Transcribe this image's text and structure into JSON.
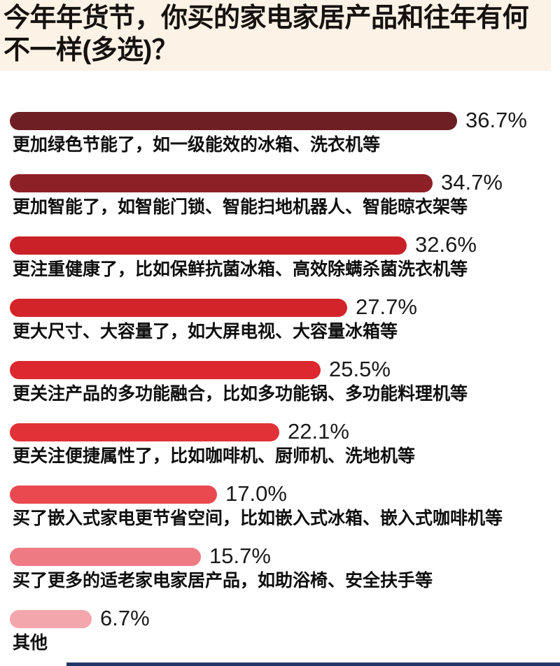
{
  "title": "今年年货节，你买的家电家居产品和往年有何不一样(多选)？",
  "colors": {
    "title_bg": "#fdf2e6",
    "page_bg": "#ffffff",
    "text": "#0f0f0f",
    "footer_bar": "#22356b"
  },
  "chart_data": {
    "type": "bar",
    "orientation": "horizontal",
    "unit": "%",
    "title": "今年年货节，你买的家电家居产品和往年有何不一样(多选)？",
    "xlim": [
      0,
      40
    ],
    "grid": false,
    "legend": false,
    "value_labels_shown": true,
    "categories": [
      "更加绿色节能了，如一级能效的冰箱、洗衣机等",
      "更加智能了，如智能门锁、智能扫地机器人、智能晾衣架等",
      "更注重健康了，比如保鲜抗菌冰箱、高效除螨杀菌洗衣机等",
      "更大尺寸、大容量了，如大屏电视、大容量冰箱等",
      "更关注产品的多功能融合，比如多功能锅、多功能料理机等",
      "更关注便捷属性了，比如咖啡机、厨师机、洗地机等",
      "买了嵌入式家电更节省空间，比如嵌入式冰箱、嵌入式咖啡机等",
      "买了更多的适老家电家居产品，如助浴椅、安全扶手等",
      "其他"
    ],
    "values": [
      36.7,
      34.7,
      32.6,
      27.7,
      25.5,
      22.1,
      17.0,
      15.7,
      6.7
    ],
    "items": [
      {
        "label": "更加绿色节能了，如一级能效的冰箱、洗衣机等",
        "value": 36.7,
        "display": "36.7%",
        "color": "#6e1f23"
      },
      {
        "label": "更加智能了，如智能门锁、智能扫地机器人、智能晾衣架等",
        "value": 34.7,
        "display": "34.7%",
        "color": "#8d2026"
      },
      {
        "label": "更注重健康了，比如保鲜抗菌冰箱、高效除螨杀菌洗衣机等",
        "value": 32.6,
        "display": "32.6%",
        "color": "#c92127"
      },
      {
        "label": "更大尺寸、大容量了，如大屏电视、大容量冰箱等",
        "value": 27.7,
        "display": "27.7%",
        "color": "#d3242a"
      },
      {
        "label": "更关注产品的多功能融合，比如多功能锅、多功能料理机等",
        "value": 25.5,
        "display": "25.5%",
        "color": "#dc282e"
      },
      {
        "label": "更关注便捷属性了，比如咖啡机、厨师机、洗地机等",
        "value": 22.1,
        "display": "22.1%",
        "color": "#e23137"
      },
      {
        "label": "买了嵌入式家电更节省空间，比如嵌入式冰箱、嵌入式咖啡机等",
        "value": 17.0,
        "display": "17.0%",
        "color": "#e9494f"
      },
      {
        "label": "买了更多的适老家电家居产品，如助浴椅、安全扶手等",
        "value": 15.7,
        "display": "15.7%",
        "color": "#ee7b83"
      },
      {
        "label": "其他",
        "value": 6.7,
        "display": "6.7%",
        "color": "#f3a6ac"
      }
    ]
  }
}
